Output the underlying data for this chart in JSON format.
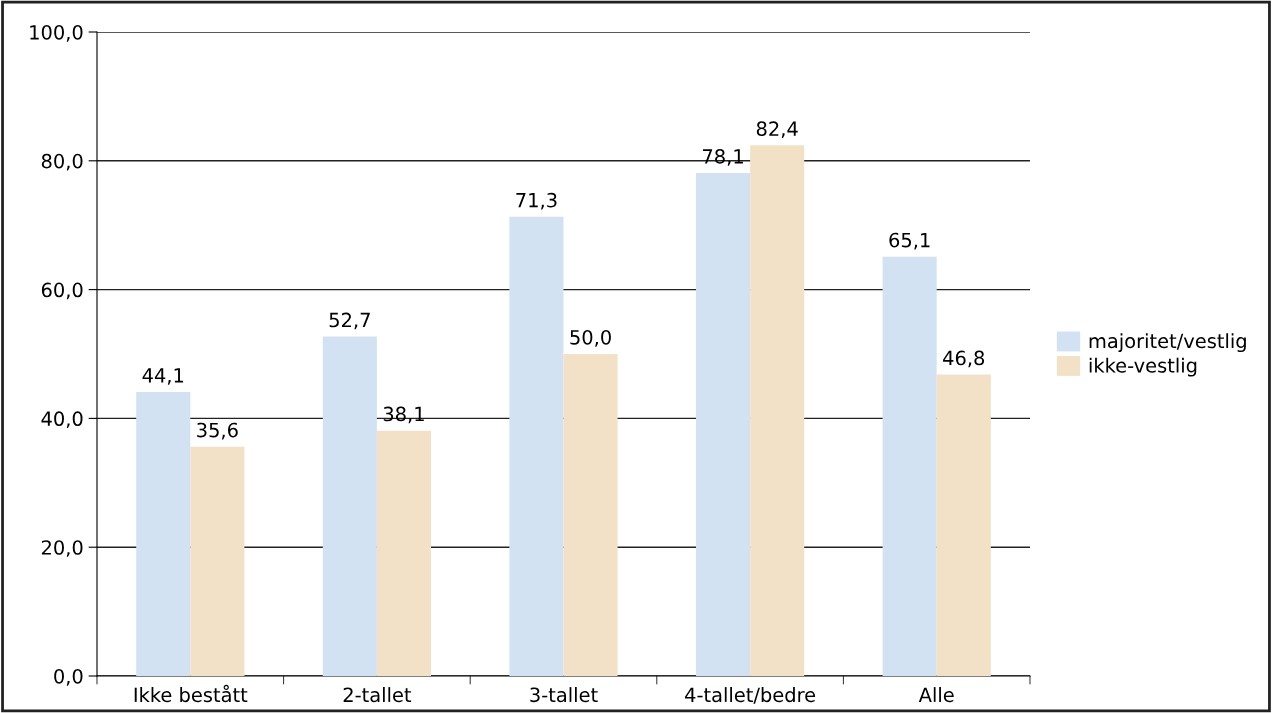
{
  "chart_data": {
    "type": "bar",
    "categories": [
      "Ikke bestått",
      "2-tallet",
      "3-tallet",
      "4-tallet/bedre",
      "Alle"
    ],
    "series": [
      {
        "name": "majoritet/vestlig",
        "color": "#d3e2f2",
        "values": [
          44.1,
          52.7,
          71.3,
          78.1,
          65.1
        ],
        "value_labels": [
          "44,1",
          "52,7",
          "71,3",
          "78,1",
          "65,1"
        ]
      },
      {
        "name": "ikke-vestlig",
        "color": "#f2e1c7",
        "values": [
          35.6,
          38.1,
          50.0,
          82.4,
          46.8
        ],
        "value_labels": [
          "35,6",
          "38,1",
          "50,0",
          "82,4",
          "46,8"
        ]
      }
    ],
    "ylim": [
      0,
      100
    ],
    "yticks": [
      {
        "value": 0,
        "label": "0,0"
      },
      {
        "value": 20,
        "label": "20,0"
      },
      {
        "value": 40,
        "label": "40,0"
      },
      {
        "value": 60,
        "label": "60,0"
      },
      {
        "value": 80,
        "label": "80,0"
      },
      {
        "value": 100,
        "label": "100,0"
      }
    ],
    "grid": "y",
    "legend": "right"
  }
}
